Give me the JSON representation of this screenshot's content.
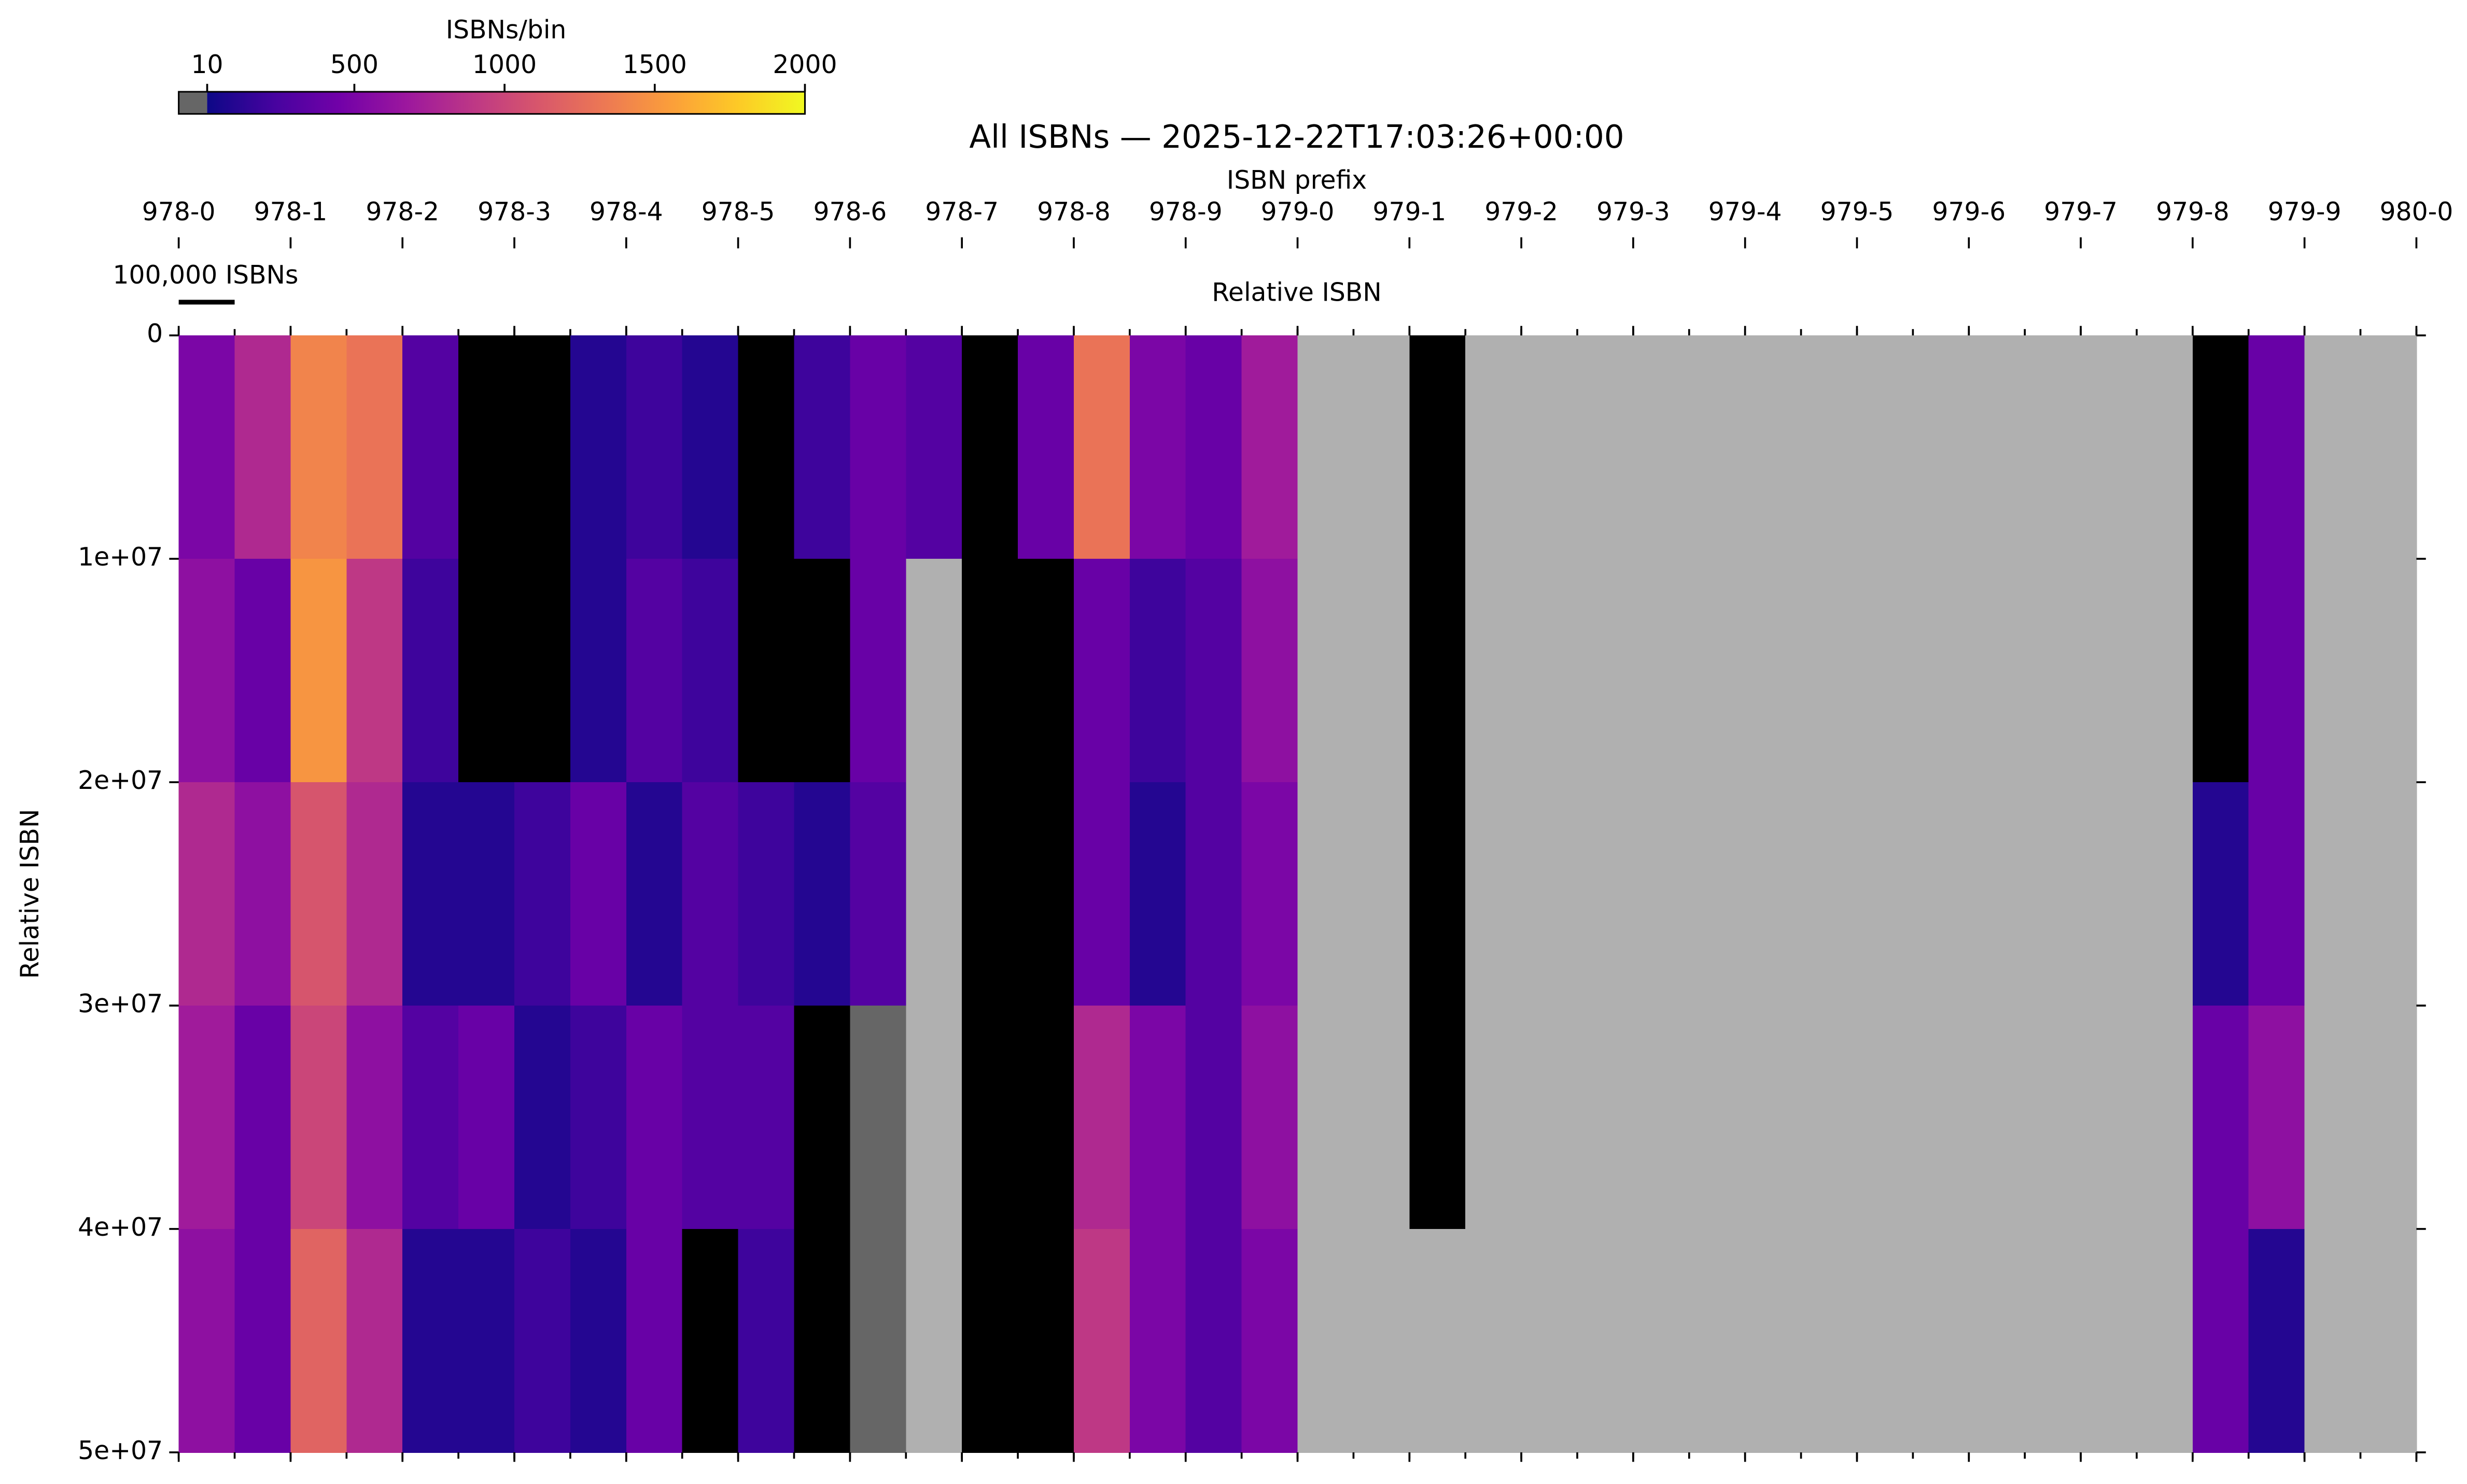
{
  "chart_data": {
    "type": "heatmap",
    "title": "All ISBNs — 2025-12-22T17:03:26+00:00",
    "x_label": "ISBN prefix",
    "x2_label": "Relative ISBN",
    "y_label": "Relative ISBN",
    "colorbar_label": "ISBNs/bin",
    "scale_bar": {
      "label": "100,000 ISBNs",
      "value": 100000
    },
    "colormap": "plasma",
    "null_color": "#b0b0b0",
    "zero_color": "#000000",
    "under_color": "#666666",
    "clim": [
      10,
      2000
    ],
    "cticks": [
      10,
      500,
      1000,
      1500,
      2000
    ],
    "xlim": [
      0,
      4000000
    ],
    "xticks": [
      {
        "value": 0,
        "label": "978-0"
      },
      {
        "value": 200000,
        "label": "978-1"
      },
      {
        "value": 400000,
        "label": "978-2"
      },
      {
        "value": 600000,
        "label": "978-3"
      },
      {
        "value": 800000,
        "label": "978-4"
      },
      {
        "value": 1000000,
        "label": "978-5"
      },
      {
        "value": 1200000,
        "label": "978-6"
      },
      {
        "value": 1400000,
        "label": "978-7"
      },
      {
        "value": 1600000,
        "label": "978-8"
      },
      {
        "value": 1800000,
        "label": "978-9"
      },
      {
        "value": 2000000,
        "label": "979-0"
      },
      {
        "value": 2200000,
        "label": "979-1"
      },
      {
        "value": 2400000,
        "label": "979-2"
      },
      {
        "value": 2600000,
        "label": "979-3"
      },
      {
        "value": 2800000,
        "label": "979-4"
      },
      {
        "value": 3000000,
        "label": "979-5"
      },
      {
        "value": 3200000,
        "label": "979-6"
      },
      {
        "value": 3400000,
        "label": "979-7"
      },
      {
        "value": 3600000,
        "label": "979-8"
      },
      {
        "value": 3800000,
        "label": "979-9"
      },
      {
        "value": 4000000,
        "label": "980-0"
      }
    ],
    "xbins": [
      0,
      100000,
      200000,
      300000,
      400000,
      500000,
      600000,
      700000,
      800000,
      900000,
      1000000,
      1100000,
      1200000,
      1300000,
      1400000,
      1500000,
      1600000,
      1700000,
      1800000,
      1900000,
      2000000,
      2100000,
      2200000,
      2300000,
      2400000,
      2500000,
      2600000,
      2700000,
      2800000,
      2900000,
      3000000,
      3100000,
      3200000,
      3300000,
      3400000,
      3500000,
      3600000,
      3700000,
      3800000,
      3900000,
      4000000
    ],
    "ylim": [
      0,
      50000000
    ],
    "yticks": [
      0,
      {
        "value": 10000000,
        "label": "1e+07"
      },
      {
        "value": 20000000,
        "label": "2e+07"
      },
      {
        "value": 30000000,
        "label": "3e+07"
      },
      {
        "value": 40000000,
        "label": "4e+07"
      },
      {
        "value": 50000000,
        "label": "5e+07"
      }
    ],
    "z": [
      [
        500,
        800,
        1400,
        1300,
        300,
        0,
        0,
        100,
        200,
        100,
        0,
        200,
        400,
        300,
        0,
        400,
        1300,
        500,
        400,
        700,
        null,
        null,
        0,
        null,
        null,
        null,
        null,
        null,
        null,
        null,
        null,
        null,
        null,
        null,
        null,
        null,
        0,
        400,
        null,
        null
      ],
      [
        600,
        400,
        1500,
        900,
        200,
        0,
        0,
        100,
        300,
        200,
        0,
        0,
        400,
        null,
        0,
        0,
        400,
        200,
        300,
        600,
        null,
        null,
        0,
        null,
        null,
        null,
        null,
        null,
        null,
        null,
        null,
        null,
        null,
        null,
        null,
        null,
        0,
        400,
        null,
        null
      ],
      [
        800,
        600,
        1100,
        800,
        100,
        100,
        200,
        400,
        100,
        300,
        200,
        100,
        300,
        null,
        0,
        0,
        400,
        100,
        300,
        500,
        null,
        null,
        0,
        null,
        null,
        null,
        null,
        null,
        null,
        null,
        null,
        null,
        null,
        null,
        null,
        null,
        100,
        400,
        null,
        null
      ],
      [
        700,
        400,
        1000,
        600,
        300,
        400,
        100,
        200,
        400,
        300,
        300,
        0,
        5,
        null,
        0,
        0,
        800,
        500,
        300,
        600,
        null,
        null,
        0,
        null,
        null,
        null,
        null,
        null,
        null,
        null,
        null,
        null,
        null,
        null,
        null,
        null,
        400,
        600,
        null,
        null
      ],
      [
        600,
        400,
        1200,
        800,
        100,
        100,
        200,
        100,
        400,
        0,
        200,
        0,
        5,
        null,
        0,
        0,
        900,
        500,
        300,
        500,
        null,
        null,
        null,
        null,
        null,
        null,
        null,
        null,
        null,
        null,
        null,
        null,
        null,
        null,
        null,
        null,
        400,
        100,
        null,
        null
      ]
    ]
  }
}
